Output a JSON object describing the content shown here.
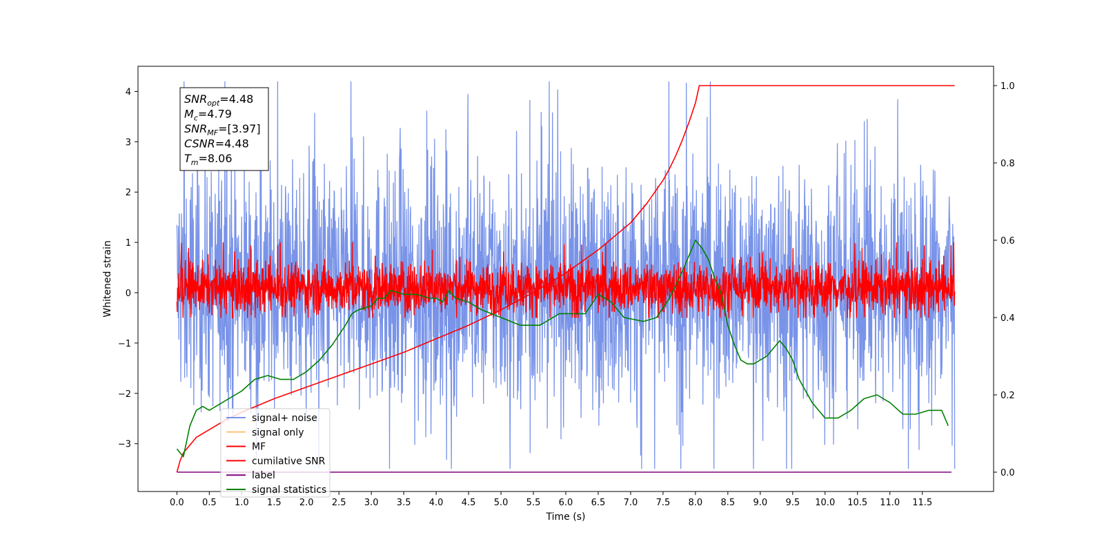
{
  "chart_data": {
    "type": "line",
    "xlabel": "Time (s)",
    "ylabel": "Whitened strain",
    "y2label": "",
    "xlim": [
      -0.6,
      12.6
    ],
    "ylim": [
      -3.95,
      4.5
    ],
    "y2lim": [
      -0.05,
      1.05
    ],
    "x_ticks": [
      0.0,
      0.5,
      1.0,
      1.5,
      2.0,
      2.5,
      3.0,
      3.5,
      4.0,
      4.5,
      5.0,
      5.5,
      6.0,
      6.5,
      7.0,
      7.5,
      8.0,
      8.5,
      9.0,
      9.5,
      10.0,
      10.5,
      11.0,
      11.5
    ],
    "x_tick_labels": [
      "0.0",
      "0.5",
      "1.0",
      "1.5",
      "2.0",
      "2.5",
      "3.0",
      "3.5",
      "4.0",
      "4.5",
      "5.0",
      "5.5",
      "6.0",
      "6.5",
      "7.0",
      "7.5",
      "8.0",
      "8.5",
      "9.0",
      "9.5",
      "10.0",
      "10.5",
      "11.0",
      "11.5"
    ],
    "y_ticks": [
      -3,
      -2,
      -1,
      0,
      1,
      2,
      3,
      4
    ],
    "y_tick_labels": [
      "−3",
      "−2",
      "−1",
      "0",
      "1",
      "2",
      "3",
      "4"
    ],
    "y2_ticks": [
      0.0,
      0.2,
      0.4,
      0.6,
      0.8,
      1.0
    ],
    "y2_tick_labels": [
      "0.0",
      "0.2",
      "0.4",
      "0.6",
      "0.8",
      "1.0"
    ],
    "grid": false,
    "legend_position": "lower-left",
    "info_box": {
      "lines": [
        {
          "sym": "SNR",
          "sub": "opt",
          "val": "=4.48"
        },
        {
          "sym": "M",
          "sub": "c",
          "val": "=4.79"
        },
        {
          "sym": "SNR",
          "sub": "MF",
          "val": "=[3.97]"
        },
        {
          "sym": "CSNR",
          "sub": "",
          "val": "=4.48"
        },
        {
          "sym": "T",
          "sub": "m",
          "val": "=8.06"
        }
      ]
    },
    "series": [
      {
        "name": "signal+ noise",
        "color": "#7893e8",
        "axis": "left",
        "kind": "noise",
        "x_range": [
          0.0,
          12.0
        ],
        "center": 0.0,
        "typical_range": [
          -2.2,
          2.5
        ],
        "extreme_range": [
          -3.5,
          4.2
        ]
      },
      {
        "name": "signal only",
        "color": "#ffc47a",
        "axis": "left",
        "kind": "hidden"
      },
      {
        "name": "MF",
        "color": "#ff0000",
        "axis": "left",
        "kind": "noise",
        "x_range": [
          0.0,
          12.0
        ],
        "center": 0.0,
        "typical_range": [
          -0.4,
          0.6
        ],
        "extreme_range": [
          -0.5,
          1.0
        ]
      },
      {
        "name": "cumilative SNR",
        "color": "#ff0000",
        "axis": "right",
        "kind": "line",
        "x": [
          0.0,
          0.05,
          0.1,
          0.2,
          0.3,
          0.5,
          0.75,
          1.0,
          1.5,
          2.0,
          2.5,
          3.0,
          3.5,
          4.0,
          4.5,
          5.0,
          5.5,
          6.0,
          6.5,
          7.0,
          7.25,
          7.5,
          7.6,
          7.7,
          7.8,
          7.9,
          8.0,
          8.06,
          8.5,
          9.0,
          9.5,
          10.0,
          10.5,
          11.0,
          11.5,
          12.0
        ],
        "values": [
          0.0,
          0.03,
          0.05,
          0.07,
          0.09,
          0.11,
          0.135,
          0.155,
          0.19,
          0.22,
          0.25,
          0.28,
          0.31,
          0.345,
          0.38,
          0.42,
          0.465,
          0.515,
          0.575,
          0.645,
          0.695,
          0.755,
          0.785,
          0.82,
          0.86,
          0.905,
          0.955,
          1.0,
          1.0,
          1.0,
          1.0,
          1.0,
          1.0,
          1.0,
          1.0,
          1.0
        ]
      },
      {
        "name": "label",
        "color": "#800080",
        "axis": "right",
        "kind": "line",
        "x": [
          0.0,
          11.95
        ],
        "values": [
          0.0,
          0.0
        ]
      },
      {
        "name": "signal statistics",
        "color": "#008000",
        "axis": "right",
        "kind": "line",
        "x": [
          0.0,
          0.1,
          0.2,
          0.3,
          0.4,
          0.5,
          0.6,
          0.7,
          0.8,
          0.9,
          1.0,
          1.2,
          1.4,
          1.6,
          1.8,
          2.0,
          2.2,
          2.4,
          2.6,
          2.7,
          2.8,
          3.0,
          3.1,
          3.2,
          3.3,
          3.5,
          3.7,
          3.9,
          4.0,
          4.1,
          4.2,
          4.3,
          4.5,
          4.7,
          5.0,
          5.3,
          5.6,
          5.9,
          6.1,
          6.3,
          6.5,
          6.7,
          6.9,
          7.2,
          7.4,
          7.6,
          7.8,
          8.0,
          8.1,
          8.2,
          8.3,
          8.4,
          8.5,
          8.6,
          8.7,
          8.8,
          8.9,
          9.0,
          9.1,
          9.2,
          9.3,
          9.4,
          9.5,
          9.6,
          9.8,
          10.0,
          10.2,
          10.4,
          10.6,
          10.8,
          11.0,
          11.2,
          11.4,
          11.6,
          11.8,
          11.9
        ],
        "values": [
          0.06,
          0.04,
          0.12,
          0.16,
          0.17,
          0.16,
          0.17,
          0.18,
          0.19,
          0.2,
          0.21,
          0.24,
          0.25,
          0.24,
          0.24,
          0.26,
          0.29,
          0.33,
          0.38,
          0.41,
          0.42,
          0.43,
          0.45,
          0.45,
          0.47,
          0.46,
          0.46,
          0.45,
          0.45,
          0.44,
          0.47,
          0.45,
          0.44,
          0.42,
          0.4,
          0.38,
          0.38,
          0.41,
          0.41,
          0.41,
          0.46,
          0.44,
          0.4,
          0.39,
          0.4,
          0.45,
          0.52,
          0.6,
          0.58,
          0.55,
          0.5,
          0.46,
          0.38,
          0.33,
          0.29,
          0.28,
          0.28,
          0.29,
          0.3,
          0.32,
          0.34,
          0.32,
          0.29,
          0.24,
          0.18,
          0.14,
          0.14,
          0.16,
          0.19,
          0.2,
          0.18,
          0.15,
          0.15,
          0.16,
          0.16,
          0.12
        ]
      }
    ]
  }
}
